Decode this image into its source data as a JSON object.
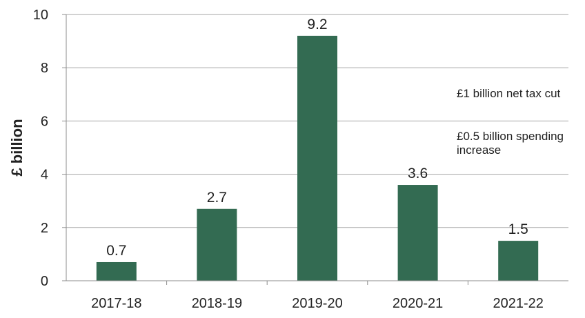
{
  "chart_data": {
    "type": "bar",
    "categories": [
      "2017-18",
      "2018-19",
      "2019-20",
      "2020-21",
      "2021-22"
    ],
    "values": [
      0.7,
      2.7,
      9.2,
      3.6,
      1.5
    ],
    "data_labels": [
      "0.7",
      "2.7",
      "9.2",
      "3.6",
      "1.5"
    ],
    "title": "",
    "xlabel": "",
    "ylabel": "£ billion",
    "ylim": [
      0,
      10
    ],
    "yticks": [
      0,
      2,
      4,
      6,
      8,
      10
    ],
    "ytick_labels": [
      "0",
      "2",
      "4",
      "6",
      "8",
      "10"
    ],
    "grid": "horizontal",
    "legend": "none",
    "bar_color": "#336b52",
    "annotations": [
      "£1 billion net tax cut",
      "£0.5 billion spending increase"
    ]
  }
}
